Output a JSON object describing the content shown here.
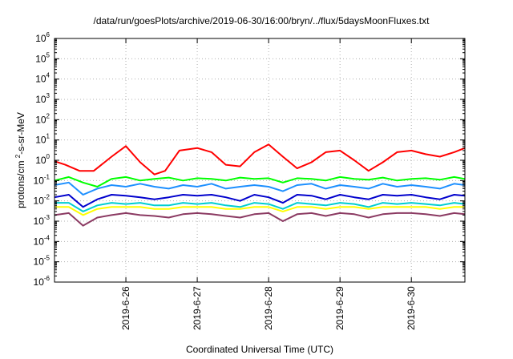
{
  "chart_data": {
    "type": "line",
    "title": "/data/run/goesPlots/archive/2019-06-30/16:00/bryn/../flux/5daysMoonFluxes.txt",
    "xlabel": "Coordinated Universal Time (UTC)",
    "ylabel": "protons/cm2-s-sr-MeV",
    "y_scale": "log",
    "ylim_exponents": [
      -6,
      6
    ],
    "y_ticks": [
      {
        "base": "10",
        "exp": "-6"
      },
      {
        "base": "10",
        "exp": "-5"
      },
      {
        "base": "10",
        "exp": "-4"
      },
      {
        "base": "10",
        "exp": "-3"
      },
      {
        "base": "10",
        "exp": "-2"
      },
      {
        "base": "10",
        "exp": "-1"
      },
      {
        "base": "10",
        "exp": "0"
      },
      {
        "base": "10",
        "exp": "1"
      },
      {
        "base": "10",
        "exp": "2"
      },
      {
        "base": "10",
        "exp": "3"
      },
      {
        "base": "10",
        "exp": "4"
      },
      {
        "base": "10",
        "exp": "5"
      },
      {
        "base": "10",
        "exp": "6"
      }
    ],
    "xlim_days": [
      0,
      5.75
    ],
    "x_ticks": [
      {
        "day": 1,
        "label": "2019-6-26"
      },
      {
        "day": 2,
        "label": "2019-6-27"
      },
      {
        "day": 3,
        "label": "2019-6-28"
      },
      {
        "day": 4,
        "label": "2019-6-29"
      },
      {
        "day": 5,
        "label": "2019-6-30"
      }
    ],
    "grid": true,
    "series": [
      {
        "color": "#ff0000",
        "x": [
          0,
          0.15,
          0.35,
          0.55,
          0.8,
          1.0,
          1.2,
          1.4,
          1.55,
          1.75,
          2.0,
          2.2,
          2.4,
          2.6,
          2.8,
          3.0,
          3.2,
          3.4,
          3.6,
          3.8,
          4.0,
          4.2,
          4.4,
          4.6,
          4.8,
          5.0,
          5.2,
          5.4,
          5.6,
          5.75
        ],
        "y": [
          0.9,
          0.6,
          0.3,
          0.3,
          1.5,
          5,
          0.8,
          0.2,
          0.3,
          3,
          4,
          2.5,
          0.6,
          0.5,
          2.5,
          6,
          1.5,
          0.4,
          0.8,
          2.5,
          3,
          1,
          0.3,
          0.8,
          2.5,
          3,
          2,
          1.5,
          2.5,
          4
        ]
      },
      {
        "color": "#00ff00",
        "x": [
          0,
          0.2,
          0.4,
          0.6,
          0.8,
          1.0,
          1.2,
          1.4,
          1.6,
          1.8,
          2.0,
          2.2,
          2.4,
          2.6,
          2.8,
          3.0,
          3.2,
          3.4,
          3.6,
          3.8,
          4.0,
          4.2,
          4.4,
          4.6,
          4.8,
          5.0,
          5.2,
          5.4,
          5.6,
          5.75
        ],
        "y": [
          0.1,
          0.15,
          0.08,
          0.05,
          0.12,
          0.15,
          0.1,
          0.12,
          0.14,
          0.1,
          0.13,
          0.12,
          0.1,
          0.14,
          0.12,
          0.13,
          0.08,
          0.13,
          0.12,
          0.1,
          0.15,
          0.12,
          0.11,
          0.14,
          0.1,
          0.12,
          0.13,
          0.11,
          0.15,
          0.12
        ]
      },
      {
        "color": "#1e90ff",
        "x": [
          0,
          0.2,
          0.4,
          0.6,
          0.8,
          1.0,
          1.2,
          1.4,
          1.6,
          1.8,
          2.0,
          2.2,
          2.4,
          2.6,
          2.8,
          3.0,
          3.2,
          3.4,
          3.6,
          3.8,
          4.0,
          4.2,
          4.4,
          4.6,
          4.8,
          5.0,
          5.2,
          5.4,
          5.6,
          5.75
        ],
        "y": [
          0.06,
          0.08,
          0.02,
          0.04,
          0.06,
          0.05,
          0.07,
          0.05,
          0.04,
          0.06,
          0.05,
          0.07,
          0.04,
          0.05,
          0.06,
          0.05,
          0.03,
          0.06,
          0.07,
          0.04,
          0.06,
          0.05,
          0.04,
          0.07,
          0.05,
          0.06,
          0.05,
          0.04,
          0.07,
          0.06
        ]
      },
      {
        "color": "#0000cd",
        "x": [
          0,
          0.2,
          0.4,
          0.6,
          0.8,
          1.0,
          1.2,
          1.4,
          1.6,
          1.8,
          2.0,
          2.2,
          2.4,
          2.6,
          2.8,
          3.0,
          3.2,
          3.4,
          3.6,
          3.8,
          4.0,
          4.2,
          4.4,
          4.6,
          4.8,
          5.0,
          5.2,
          5.4,
          5.6,
          5.75
        ],
        "y": [
          0.015,
          0.02,
          0.005,
          0.012,
          0.02,
          0.018,
          0.015,
          0.012,
          0.015,
          0.02,
          0.018,
          0.02,
          0.015,
          0.01,
          0.02,
          0.015,
          0.008,
          0.02,
          0.018,
          0.012,
          0.02,
          0.015,
          0.012,
          0.02,
          0.018,
          0.02,
          0.015,
          0.012,
          0.02,
          0.018
        ]
      },
      {
        "color": "#00ced1",
        "x": [
          0,
          0.2,
          0.4,
          0.6,
          0.8,
          1.0,
          1.2,
          1.4,
          1.6,
          1.8,
          2.0,
          2.2,
          2.4,
          2.6,
          2.8,
          3.0,
          3.2,
          3.4,
          3.6,
          3.8,
          4.0,
          4.2,
          4.4,
          4.6,
          4.8,
          5.0,
          5.2,
          5.4,
          5.6,
          5.75
        ],
        "y": [
          0.008,
          0.008,
          0.003,
          0.006,
          0.008,
          0.007,
          0.008,
          0.006,
          0.006,
          0.008,
          0.007,
          0.008,
          0.006,
          0.005,
          0.008,
          0.007,
          0.004,
          0.008,
          0.007,
          0.006,
          0.008,
          0.007,
          0.005,
          0.008,
          0.007,
          0.008,
          0.007,
          0.006,
          0.008,
          0.007
        ]
      },
      {
        "color": "#ffff00",
        "x": [
          0,
          0.2,
          0.4,
          0.6,
          0.8,
          1.0,
          1.2,
          1.4,
          1.6,
          1.8,
          2.0,
          2.2,
          2.4,
          2.6,
          2.8,
          3.0,
          3.2,
          3.4,
          3.6,
          3.8,
          4.0,
          4.2,
          4.4,
          4.6,
          4.8,
          5.0,
          5.2,
          5.4,
          5.6,
          5.75
        ],
        "y": [
          0.005,
          0.005,
          0.002,
          0.004,
          0.005,
          0.005,
          0.005,
          0.004,
          0.004,
          0.005,
          0.005,
          0.005,
          0.004,
          0.004,
          0.005,
          0.005,
          0.003,
          0.005,
          0.005,
          0.004,
          0.005,
          0.005,
          0.004,
          0.005,
          0.005,
          0.005,
          0.005,
          0.004,
          0.005,
          0.005
        ]
      },
      {
        "color": "#8b3a62",
        "x": [
          0,
          0.2,
          0.4,
          0.6,
          0.8,
          1.0,
          1.2,
          1.4,
          1.6,
          1.8,
          2.0,
          2.2,
          2.4,
          2.6,
          2.8,
          3.0,
          3.2,
          3.4,
          3.6,
          3.8,
          4.0,
          4.2,
          4.4,
          4.6,
          4.8,
          5.0,
          5.2,
          5.4,
          5.6,
          5.75
        ],
        "y": [
          0.002,
          0.0025,
          0.0006,
          0.0015,
          0.002,
          0.0025,
          0.002,
          0.0018,
          0.0015,
          0.0022,
          0.0025,
          0.0022,
          0.0018,
          0.0015,
          0.0022,
          0.0025,
          0.001,
          0.0022,
          0.0025,
          0.0018,
          0.0025,
          0.0022,
          0.0015,
          0.0022,
          0.0025,
          0.0025,
          0.0022,
          0.0018,
          0.0025,
          0.0022
        ]
      }
    ]
  }
}
